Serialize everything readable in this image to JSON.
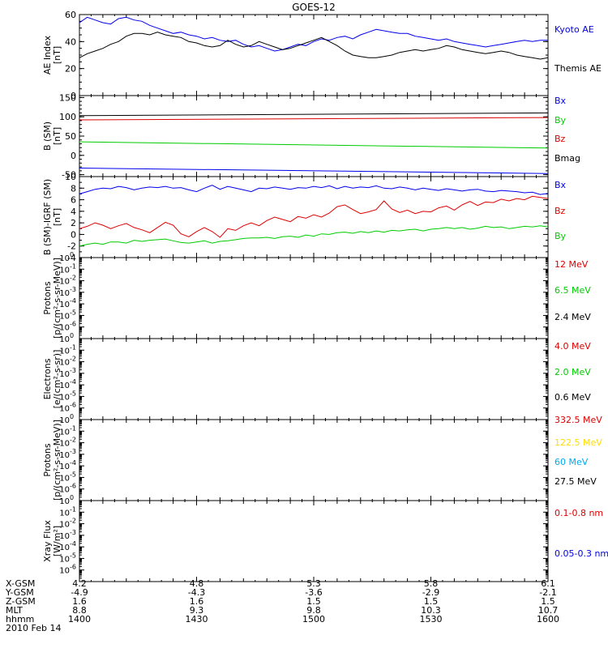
{
  "title": "GOES-12",
  "colors": {
    "black": "#000000",
    "blue": "#0000ee",
    "red": "#dd0000",
    "green": "#00cc00",
    "yellow": "#ffdd00",
    "cyan": "#00aaee"
  },
  "chart_data": [
    {
      "type": "line",
      "ylabel_lines": [
        "AE Index",
        "[nT]"
      ],
      "ylim": [
        0,
        60
      ],
      "yticks": [
        "0",
        "20",
        "40",
        "60"
      ],
      "x": [
        0,
        1,
        2,
        3,
        4,
        5,
        6,
        7,
        8,
        9,
        10,
        11,
        12,
        13,
        14,
        15,
        16,
        17,
        18,
        19,
        20,
        21,
        22,
        23,
        24,
        25,
        26,
        27,
        28,
        29,
        30,
        31,
        32,
        33,
        34,
        35,
        36,
        37,
        38,
        39,
        40,
        41,
        42,
        43,
        44,
        45,
        46,
        47,
        48,
        49,
        50,
        51,
        52,
        53,
        54,
        55,
        56,
        57,
        58,
        59,
        60
      ],
      "series": [
        {
          "name": "Kyoto AE",
          "color": "blue",
          "values": [
            54,
            58,
            56,
            54,
            53,
            57,
            58,
            56,
            55,
            52,
            50,
            48,
            46,
            47,
            45,
            44,
            42,
            43,
            41,
            40,
            41,
            38,
            36,
            37,
            35,
            33,
            34,
            36,
            38,
            37,
            40,
            42,
            41,
            43,
            44,
            42,
            45,
            47,
            49,
            48,
            47,
            46,
            46,
            44,
            43,
            42,
            41,
            42,
            40,
            39,
            38,
            37,
            36,
            37,
            38,
            39,
            40,
            41,
            40,
            41,
            41
          ]
        },
        {
          "name": "Themis AE",
          "color": "black",
          "values": [
            28,
            31,
            33,
            35,
            38,
            40,
            44,
            46,
            46,
            45,
            47,
            45,
            44,
            43,
            40,
            39,
            37,
            36,
            37,
            41,
            38,
            36,
            37,
            40,
            38,
            36,
            34,
            35,
            37,
            39,
            41,
            43,
            40,
            37,
            33,
            30,
            29,
            28,
            28,
            29,
            30,
            32,
            33,
            34,
            33,
            34,
            35,
            37,
            36,
            34,
            33,
            32,
            31,
            32,
            33,
            32,
            30,
            29,
            28,
            27,
            28
          ]
        }
      ]
    },
    {
      "type": "line",
      "ylabel_lines": [
        "B (SM)",
        "[nT]"
      ],
      "ylim": [
        -55,
        155
      ],
      "yticks": [
        "-50",
        "0",
        "50",
        "100",
        "150"
      ],
      "x": [
        0,
        60
      ],
      "series": [
        {
          "name": "Bx",
          "color": "blue",
          "values": [
            -33,
            -47
          ]
        },
        {
          "name": "By",
          "color": "green",
          "values": [
            35,
            19
          ]
        },
        {
          "name": "Bz",
          "color": "red",
          "values": [
            92,
            98
          ]
        },
        {
          "name": "Bmag",
          "color": "black",
          "values": [
            103,
            110
          ]
        }
      ]
    },
    {
      "type": "line",
      "ylabel_lines": [
        "B (SM)-IGRF (SM)",
        "[nT]"
      ],
      "ylim": [
        -4,
        10
      ],
      "yticks": [
        "-4",
        "-2",
        "0",
        "2",
        "4",
        "6",
        "8",
        "10"
      ],
      "x": [
        0,
        1,
        2,
        3,
        4,
        5,
        6,
        7,
        8,
        9,
        10,
        11,
        12,
        13,
        14,
        15,
        16,
        17,
        18,
        19,
        20,
        21,
        22,
        23,
        24,
        25,
        26,
        27,
        28,
        29,
        30,
        31,
        32,
        33,
        34,
        35,
        36,
        37,
        38,
        39,
        40,
        41,
        42,
        43,
        44,
        45,
        46,
        47,
        48,
        49,
        50,
        51,
        52,
        53,
        54,
        55,
        56,
        57,
        58,
        59,
        60
      ],
      "series": [
        {
          "name": "Bx",
          "color": "blue",
          "values": [
            7.0,
            7.4,
            7.8,
            8.0,
            7.9,
            8.3,
            8.1,
            7.7,
            8.0,
            8.2,
            8.1,
            8.3,
            8.0,
            8.1,
            7.7,
            7.4,
            8.0,
            8.5,
            7.8,
            8.3,
            8.0,
            7.7,
            7.4,
            8.0,
            7.9,
            8.2,
            8.0,
            7.8,
            8.1,
            8.0,
            8.3,
            8.1,
            8.4,
            7.9,
            8.3,
            8.0,
            8.2,
            8.1,
            8.4,
            8.0,
            7.9,
            8.2,
            8.0,
            7.7,
            8.0,
            7.8,
            7.6,
            7.9,
            7.7,
            7.5,
            7.7,
            7.8,
            7.5,
            7.4,
            7.6,
            7.5,
            7.4,
            7.2,
            7.3,
            6.9,
            7.1
          ]
        },
        {
          "name": "Bz",
          "color": "red",
          "values": [
            1.0,
            1.4,
            2.0,
            1.6,
            1.0,
            1.5,
            1.9,
            1.2,
            0.8,
            0.3,
            1.2,
            2.1,
            1.6,
            0.1,
            -0.4,
            0.5,
            1.2,
            0.5,
            -0.5,
            1.0,
            0.7,
            1.5,
            2.0,
            1.5,
            2.4,
            3.0,
            2.6,
            2.2,
            3.1,
            2.8,
            3.4,
            3.0,
            3.7,
            4.8,
            5.1,
            4.3,
            3.6,
            3.9,
            4.3,
            5.8,
            4.4,
            3.8,
            4.2,
            3.6,
            4.0,
            3.9,
            4.6,
            4.9,
            4.2,
            5.1,
            5.7,
            5.0,
            5.6,
            5.5,
            6.1,
            5.8,
            6.2,
            6.0,
            6.6,
            6.4,
            6.2
          ]
        },
        {
          "name": "By",
          "color": "green",
          "values": [
            -2.0,
            -1.7,
            -1.5,
            -1.7,
            -1.3,
            -1.3,
            -1.5,
            -1.0,
            -1.2,
            -1.0,
            -0.9,
            -0.8,
            -1.1,
            -1.4,
            -1.5,
            -1.3,
            -1.1,
            -1.5,
            -1.2,
            -1.1,
            -0.9,
            -0.7,
            -0.6,
            -0.6,
            -0.5,
            -0.7,
            -0.4,
            -0.3,
            -0.5,
            -0.1,
            -0.3,
            0.1,
            0.0,
            0.3,
            0.4,
            0.2,
            0.5,
            0.3,
            0.6,
            0.4,
            0.7,
            0.6,
            0.8,
            0.9,
            0.6,
            0.9,
            1.0,
            1.2,
            1.0,
            1.2,
            0.9,
            1.1,
            1.4,
            1.2,
            1.3,
            1.0,
            1.2,
            1.4,
            1.3,
            1.5,
            1.3
          ]
        }
      ]
    },
    {
      "type": "line",
      "ylabel_lines": [
        "Protons",
        "[p/(cm²-s-sr-MeV)]"
      ],
      "ylim_log": [
        -7,
        0
      ],
      "yticks": [
        {
          "base": "10",
          "exp": "0"
        },
        {
          "base": "10",
          "exp": "-1"
        },
        {
          "base": "10",
          "exp": "-2"
        },
        {
          "base": "10",
          "exp": "-3"
        },
        {
          "base": "10",
          "exp": "-4"
        },
        {
          "base": "10",
          "exp": "-5"
        },
        {
          "base": "10",
          "exp": "-6"
        }
      ],
      "series": [
        {
          "name": "12 MeV",
          "color": "red",
          "values": []
        },
        {
          "name": "6.5 MeV",
          "color": "green",
          "values": []
        },
        {
          "name": "2.4 MeV",
          "color": "black",
          "values": []
        }
      ]
    },
    {
      "type": "line",
      "ylabel_lines": [
        "Electrons",
        "[e/(cm²-s-sr)]"
      ],
      "ylim_log": [
        -7,
        0
      ],
      "yticks": [
        {
          "base": "10",
          "exp": "0"
        },
        {
          "base": "10",
          "exp": "-1"
        },
        {
          "base": "10",
          "exp": "-2"
        },
        {
          "base": "10",
          "exp": "-3"
        },
        {
          "base": "10",
          "exp": "-4"
        },
        {
          "base": "10",
          "exp": "-5"
        },
        {
          "base": "10",
          "exp": "-6"
        }
      ],
      "series": [
        {
          "name": "4.0 MeV",
          "color": "red",
          "values": []
        },
        {
          "name": "2.0 MeV",
          "color": "green",
          "values": []
        },
        {
          "name": "0.6 MeV",
          "color": "black",
          "values": []
        }
      ]
    },
    {
      "type": "line",
      "ylabel_lines": [
        "Protons",
        "[p/(cm²-s-sr-MeV)]"
      ],
      "ylim_log": [
        -7,
        0
      ],
      "yticks": [
        {
          "base": "10",
          "exp": "0"
        },
        {
          "base": "10",
          "exp": "-1"
        },
        {
          "base": "10",
          "exp": "-2"
        },
        {
          "base": "10",
          "exp": "-3"
        },
        {
          "base": "10",
          "exp": "-4"
        },
        {
          "base": "10",
          "exp": "-5"
        },
        {
          "base": "10",
          "exp": "-6"
        }
      ],
      "series": [
        {
          "name": "332.5 MeV",
          "color": "red",
          "values": []
        },
        {
          "name": "122.5 MeV",
          "color": "yellow",
          "values": []
        },
        {
          "name": "60 MeV",
          "color": "cyan",
          "values": []
        },
        {
          "name": "27.5 MeV",
          "color": "black",
          "values": []
        }
      ]
    },
    {
      "type": "line",
      "ylabel_lines": [
        "Xray Flux",
        "[W/m²]"
      ],
      "ylim_log": [
        -7,
        0
      ],
      "yticks": [
        {
          "base": "10",
          "exp": "0"
        },
        {
          "base": "10",
          "exp": "-1"
        },
        {
          "base": "10",
          "exp": "-2"
        },
        {
          "base": "10",
          "exp": "-3"
        },
        {
          "base": "10",
          "exp": "-4"
        },
        {
          "base": "10",
          "exp": "-5"
        },
        {
          "base": "10",
          "exp": "-6"
        }
      ],
      "series": [
        {
          "name": "0.1-0.8 nm",
          "color": "red",
          "values": []
        },
        {
          "name": "0.05-0.3 nm",
          "color": "blue",
          "values": []
        }
      ]
    }
  ],
  "x_axis": {
    "row_labels": [
      "X-GSM",
      "Y-GSM",
      "Z-GSM",
      "MLT",
      "hhmm"
    ],
    "columns": [
      [
        "4.2",
        "-4.9",
        "1.6",
        "8.8",
        "1400"
      ],
      [
        "4.8",
        "-4.3",
        "1.6",
        "9.3",
        "1430"
      ],
      [
        "5.3",
        "-3.6",
        "1.5",
        "9.8",
        "1500"
      ],
      [
        "5.8",
        "-2.9",
        "1.5",
        "10.3",
        "1530"
      ],
      [
        "6.1",
        "-2.1",
        "1.5",
        "10.7",
        "1600"
      ]
    ],
    "date": "2010 Feb 14"
  }
}
